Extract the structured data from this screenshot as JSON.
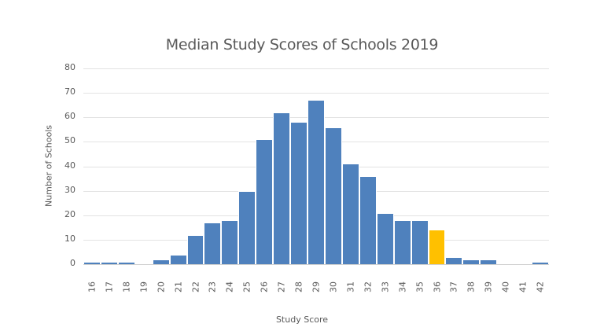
{
  "chart_data": {
    "type": "bar",
    "title": "Median Study Scores of Schools 2019",
    "xlabel": "Study Score",
    "ylabel": "Number of Schools",
    "ylim": [
      0,
      80
    ],
    "yticks": [
      0,
      10,
      20,
      30,
      40,
      50,
      60,
      70,
      80
    ],
    "grid": true,
    "legend": null,
    "categories": [
      "16",
      "17",
      "18",
      "19",
      "20",
      "21",
      "22",
      "23",
      "24",
      "25",
      "26",
      "27",
      "28",
      "29",
      "30",
      "31",
      "32",
      "33",
      "34",
      "35",
      "36",
      "37",
      "38",
      "39",
      "40",
      "41",
      "42"
    ],
    "values": [
      1,
      1,
      1,
      0,
      2,
      4,
      12,
      17,
      18,
      30,
      51,
      62,
      58,
      67,
      56,
      41,
      36,
      21,
      18,
      18,
      14,
      3,
      2,
      2,
      0,
      0,
      1
    ],
    "highlight_category": "36",
    "colors": {
      "default": "#4f81bd",
      "highlight": "#ffc000"
    }
  }
}
